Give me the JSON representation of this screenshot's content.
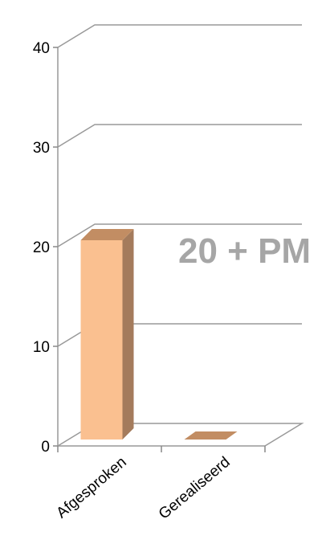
{
  "chart_data": {
    "type": "bar",
    "categories": [
      "Afgesproken",
      "Gerealiseerd"
    ],
    "values": [
      20,
      0
    ],
    "ylim": [
      0,
      40
    ],
    "yticks": [
      0,
      10,
      20,
      30,
      40
    ],
    "annotation": "20 + PM",
    "grid": true,
    "legend": "none",
    "colors": {
      "bar_front": "#fac090",
      "bar_side": "#a47b5c",
      "bar_top": "#c28d63",
      "grid": "#999999",
      "annotation": "#a6a6a6"
    }
  }
}
